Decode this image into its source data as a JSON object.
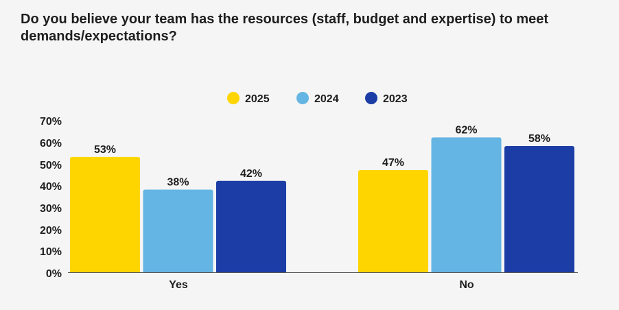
{
  "chart_data": {
    "type": "bar",
    "title": "Do you believe your team has the resources (staff, budget and expertise) to meet demands/expectations?",
    "categories": [
      "Yes",
      "No"
    ],
    "series": [
      {
        "name": "2025",
        "values": [
          53,
          47
        ],
        "color": "#FFD500"
      },
      {
        "name": "2024",
        "values": [
          38,
          62
        ],
        "color": "#64B5E3"
      },
      {
        "name": "2023",
        "values": [
          42,
          58
        ],
        "color": "#1B3DA5"
      }
    ],
    "value_labels": [
      [
        "53%",
        "47%"
      ],
      [
        "38%",
        "62%"
      ],
      [
        "42%",
        "58%"
      ]
    ],
    "ylim": [
      0,
      70
    ],
    "yticks": [
      "0%",
      "10%",
      "20%",
      "30%",
      "40%",
      "50%",
      "60%",
      "70%"
    ],
    "xlabel": "",
    "ylabel": "",
    "legend": "top-center",
    "grid": false
  }
}
